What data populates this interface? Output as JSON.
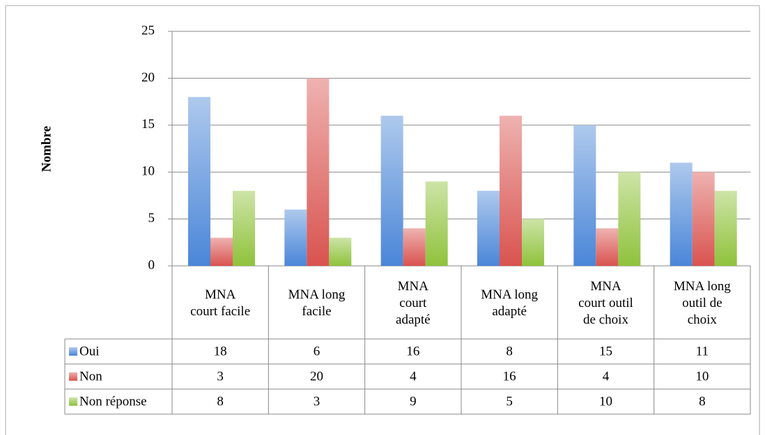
{
  "chart_data": {
    "type": "bar",
    "y_label": "Nombre",
    "categories": [
      "MNA court facile",
      "MNA long facile",
      "MNA court adapté",
      "MNA long adapté",
      "MNA court outil de choix",
      "MNA long outil de choix"
    ],
    "series": [
      {
        "name": "Oui",
        "color": "#4a86d8",
        "values": [
          18,
          6,
          16,
          8,
          15,
          11
        ]
      },
      {
        "name": "Non",
        "color": "#d9534f",
        "values": [
          3,
          20,
          4,
          16,
          4,
          10
        ]
      },
      {
        "name": "Non réponse",
        "color": "#8fc23c",
        "values": [
          8,
          3,
          9,
          5,
          10,
          8
        ]
      }
    ],
    "ylim": [
      0,
      25
    ],
    "yticks": [
      0,
      5,
      10,
      15,
      20,
      25
    ],
    "grid": true,
    "data_table": true
  }
}
